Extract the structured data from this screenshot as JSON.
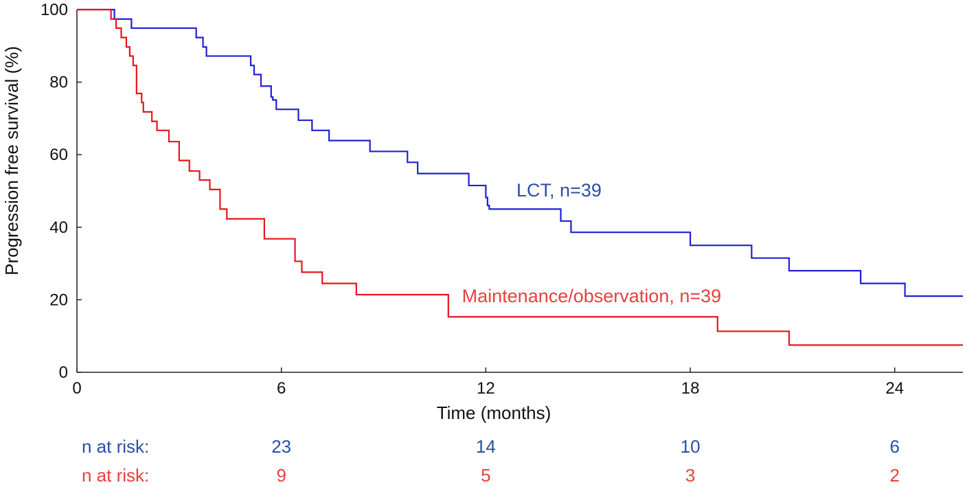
{
  "chart_data": {
    "type": "line",
    "title": "",
    "xlabel": "Time (months)",
    "ylabel": "Progression free survival (%)",
    "xlim": [
      0,
      26
    ],
    "ylim": [
      0,
      100
    ],
    "x_ticks": [
      0,
      6,
      12,
      18,
      24
    ],
    "y_ticks": [
      0,
      20,
      40,
      60,
      80,
      100
    ],
    "grid": false,
    "step": true,
    "series": [
      {
        "name": "LCT, n=39",
        "color": "#1f1fd6",
        "label_color": "#2a4fa6",
        "x": [
          0,
          1.1,
          1.6,
          3.5,
          3.7,
          3.8,
          5.1,
          5.2,
          5.4,
          5.7,
          5.75,
          5.85,
          6.5,
          6.9,
          7.4,
          8.6,
          9.7,
          10.0,
          11.5,
          12.0,
          12.05,
          12.1,
          14.2,
          14.5,
          18.0,
          19.8,
          20.9,
          23.0,
          24.3,
          26.0
        ],
        "values": [
          100,
          97.4,
          94.9,
          92.3,
          89.7,
          87.2,
          84.6,
          82.1,
          78.9,
          75.9,
          75.1,
          72.5,
          69.5,
          66.7,
          63.9,
          60.9,
          57.9,
          54.8,
          51.5,
          48.2,
          46.0,
          45.0,
          41.7,
          38.6,
          35.0,
          31.5,
          28.0,
          24.5,
          21.0,
          21.0
        ]
      },
      {
        "name": "Maintenance/observation, n=39",
        "color": "#e8141c",
        "label_color": "#e8403f",
        "x": [
          0,
          1.0,
          1.15,
          1.3,
          1.45,
          1.55,
          1.65,
          1.75,
          1.9,
          1.95,
          2.2,
          2.35,
          2.7,
          3.0,
          3.3,
          3.6,
          3.9,
          4.2,
          4.4,
          5.5,
          6.4,
          6.6,
          7.2,
          8.2,
          10.9,
          18.8,
          20.9,
          26.0
        ],
        "values": [
          100,
          97.4,
          94.9,
          92.3,
          89.7,
          87.2,
          84.6,
          76.9,
          74.4,
          71.8,
          69.2,
          66.7,
          63.6,
          58.4,
          55.5,
          53.0,
          50.4,
          45.0,
          42.3,
          36.8,
          30.6,
          27.6,
          24.5,
          21.4,
          15.3,
          11.3,
          7.5,
          7.5
        ]
      }
    ],
    "annotations": [
      {
        "text": "LCT, n=39",
        "x": 12.9,
        "y": 48.5,
        "series": 0
      },
      {
        "text": "Maintenance/observation, n=39",
        "x": 11.3,
        "y": 19.3,
        "series": 1
      }
    ],
    "risk_table": {
      "label": "n at risk:",
      "times": [
        6,
        12,
        18,
        24
      ],
      "rows": [
        {
          "series": 0,
          "counts": [
            23,
            14,
            10,
            6
          ]
        },
        {
          "series": 1,
          "counts": [
            9,
            5,
            3,
            2
          ]
        }
      ]
    }
  }
}
